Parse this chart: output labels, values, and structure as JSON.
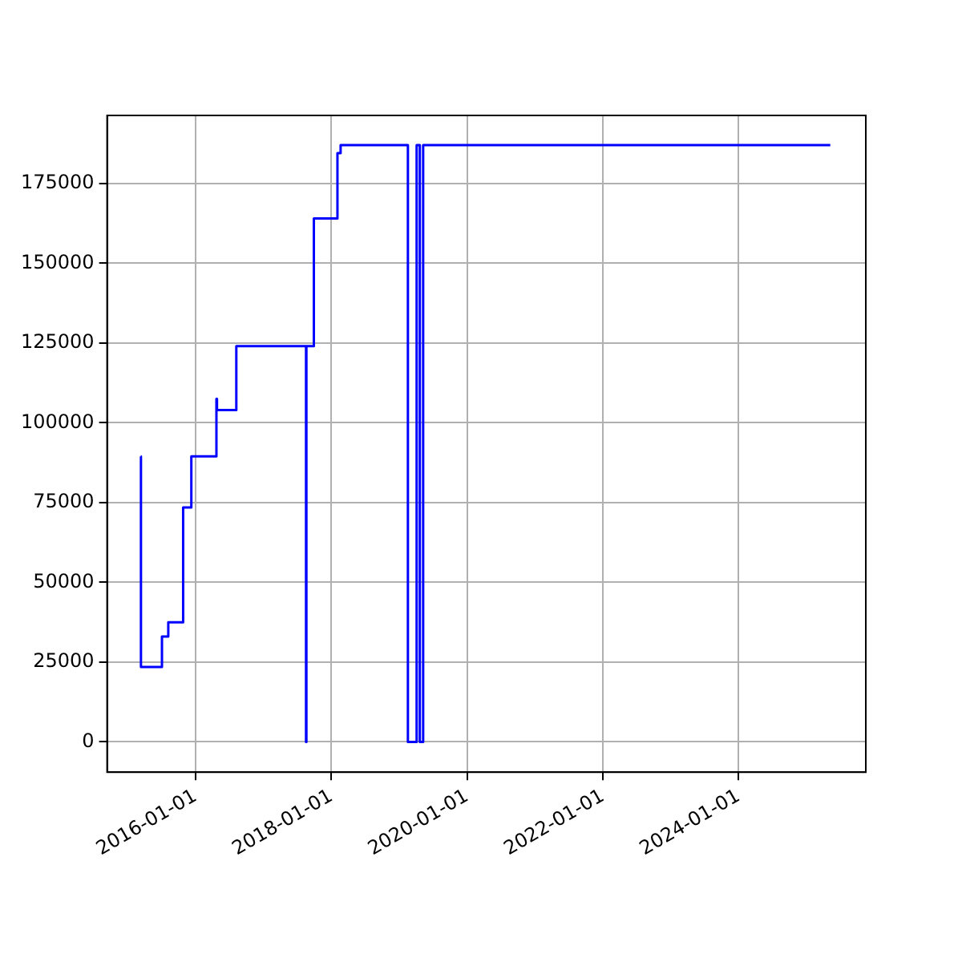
{
  "chart_data": {
    "type": "step",
    "x": [
      "2015-03-13",
      "2015-03-14",
      "2015-07-05",
      "2015-08-08",
      "2015-10-27",
      "2015-12-10",
      "2016-04-23",
      "2016-04-26",
      "2016-08-08",
      "2017-08-18",
      "2017-08-20",
      "2017-09-29",
      "2018-02-03",
      "2018-02-20",
      "2019-02-17",
      "2019-04-05",
      "2019-04-22",
      "2019-05-10",
      "2025-05-08"
    ],
    "series": [
      {
        "color": "#0000ff",
        "values": [
          89500,
          23500,
          33000,
          37500,
          73500,
          89500,
          107500,
          104000,
          124000,
          0,
          124000,
          164000,
          184500,
          187000,
          0,
          187000,
          0,
          187000,
          187000
        ]
      }
    ],
    "xlim": [
      "2014-09-13",
      "2025-11-15"
    ],
    "ylim": [
      -9500,
      196300
    ],
    "xticks": [
      {
        "value": "2016-01-01",
        "label": "2016-01-01"
      },
      {
        "value": "2018-01-01",
        "label": "2018-01-01"
      },
      {
        "value": "2020-01-01",
        "label": "2020-01-01"
      },
      {
        "value": "2022-01-01",
        "label": "2022-01-01"
      },
      {
        "value": "2024-01-01",
        "label": "2024-01-01"
      }
    ],
    "yticks": [
      0,
      25000,
      50000,
      75000,
      100000,
      125000,
      150000,
      175000
    ],
    "grid": true,
    "legend": false
  }
}
